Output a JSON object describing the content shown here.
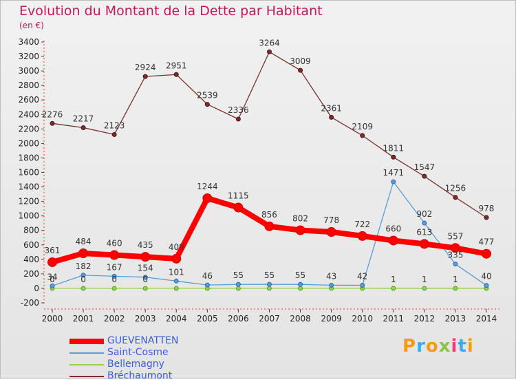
{
  "title": "Evolution du Montant de la Dette par Habitant",
  "subtitle": "(en €)",
  "logo": {
    "text": "Proxiti",
    "letter_colors": [
      "#f39c12",
      "#3fa9f5",
      "#f39c12",
      "#8bc34a",
      "#ec407a",
      "#3fa9f5",
      "#f39c12"
    ]
  },
  "chart_data": {
    "type": "line",
    "x": [
      "2000",
      "2001",
      "2002",
      "2003",
      "2004",
      "2005",
      "2006",
      "2007",
      "2008",
      "2009",
      "2010",
      "2011",
      "2012",
      "2013",
      "2014"
    ],
    "ylim": [
      -200,
      3400
    ],
    "yticks": [
      -200,
      0,
      200,
      400,
      600,
      800,
      1000,
      1200,
      1400,
      1600,
      1800,
      2000,
      2200,
      2400,
      2600,
      2800,
      3000,
      3200,
      3400
    ],
    "grid": false,
    "legend_position": "bottom-left",
    "series": [
      {
        "name": "GUEVENATTEN",
        "color": "#ff0000",
        "values": [
          361,
          484,
          460,
          435,
          409,
          1244,
          1115,
          856,
          802,
          778,
          722,
          660,
          613,
          557,
          477
        ],
        "labels": [
          "361",
          "484",
          "460",
          "435",
          "409",
          "1244",
          "1115",
          "856",
          "802",
          "778",
          "722",
          "660",
          "613",
          "557",
          "477"
        ]
      },
      {
        "name": "Saint-Cosme",
        "color": "#5b9bd5",
        "values": [
          34,
          182,
          167,
          154,
          101,
          46,
          55,
          55,
          55,
          43,
          42,
          1471,
          902,
          335,
          40
        ],
        "labels": [
          "34",
          "182",
          "167",
          "154",
          "101",
          "46",
          "55",
          "55",
          "55",
          "43",
          "42",
          "1471",
          "902",
          "335",
          "40"
        ]
      },
      {
        "name": "Bellemagny",
        "color": "#8fd14f",
        "values": [
          0,
          0,
          0,
          0,
          0,
          0,
          0,
          0,
          0,
          0,
          0,
          1,
          1,
          1,
          0
        ],
        "labels": [
          "0",
          "0",
          "0",
          "0",
          "",
          "",
          "",
          "",
          "",
          "",
          "",
          "1",
          "1",
          "1",
          ""
        ]
      },
      {
        "name": "Bréchaumont",
        "color": "#7a2e2e",
        "values": [
          2276,
          2217,
          2123,
          2924,
          2951,
          2539,
          2336,
          3264,
          3009,
          2361,
          2109,
          1811,
          1547,
          1256,
          978
        ],
        "labels": [
          "2276",
          "2217",
          "2123",
          "2924",
          "2951",
          "2539",
          "2336",
          "3264",
          "3009",
          "2361",
          "2109",
          "1811",
          "1547",
          "1256",
          "978"
        ]
      }
    ]
  }
}
